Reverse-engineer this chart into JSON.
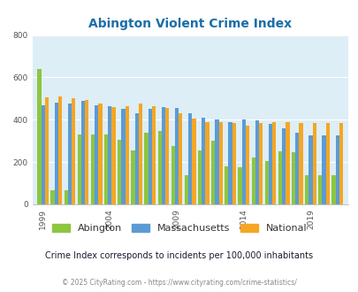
{
  "title": "Abington Violent Crime Index",
  "years": [
    1999,
    2000,
    2001,
    2002,
    2003,
    2004,
    2005,
    2006,
    2007,
    2008,
    2009,
    2010,
    2011,
    2012,
    2013,
    2014,
    2015,
    2016,
    2017,
    2018,
    2019,
    2020,
    2021
  ],
  "abington": [
    640,
    65,
    65,
    330,
    330,
    330,
    305,
    255,
    340,
    345,
    275,
    140,
    255,
    300,
    180,
    175,
    220,
    205,
    250,
    245,
    140,
    140,
    140
  ],
  "massachusetts": [
    470,
    480,
    475,
    490,
    470,
    465,
    450,
    430,
    450,
    460,
    455,
    430,
    410,
    400,
    390,
    400,
    395,
    380,
    360,
    340,
    325,
    325,
    325
  ],
  "national": [
    505,
    510,
    500,
    495,
    475,
    460,
    465,
    475,
    465,
    455,
    430,
    405,
    390,
    390,
    385,
    370,
    385,
    390,
    390,
    385,
    385,
    385,
    385
  ],
  "abington_color": "#8dc63f",
  "massachusetts_color": "#5b9bd5",
  "national_color": "#f5a623",
  "bg_color": "#ddeef6",
  "ylim": [
    0,
    800
  ],
  "yticks": [
    0,
    200,
    400,
    600,
    800
  ],
  "xtick_years": [
    1999,
    2004,
    2009,
    2014,
    2019
  ],
  "subtitle": "Crime Index corresponds to incidents per 100,000 inhabitants",
  "footer": "© 2025 CityRating.com - https://www.cityrating.com/crime-statistics/",
  "title_color": "#1b6ea8",
  "subtitle_color": "#1a1a2e",
  "footer_color": "#888888",
  "legend_labels": [
    "Abington",
    "Massachusetts",
    "National"
  ]
}
